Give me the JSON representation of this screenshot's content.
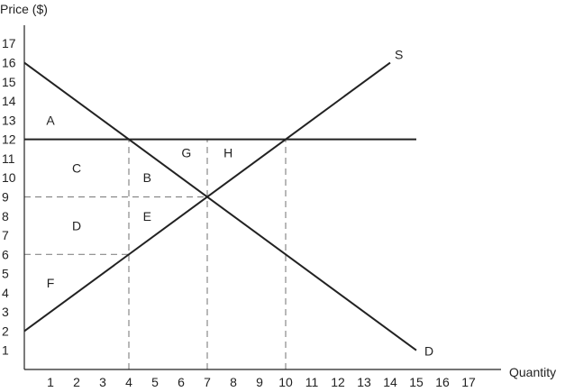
{
  "chart_data": {
    "type": "line",
    "title": "",
    "xlabel": "Quantity",
    "ylabel": "Price ($)",
    "xlim": [
      0,
      18
    ],
    "ylim": [
      0,
      18
    ],
    "x_ticks": [
      "1",
      "2",
      "3",
      "4",
      "5",
      "6",
      "7",
      "8",
      "9",
      "10",
      "11",
      "12",
      "13",
      "14",
      "15",
      "16",
      "17"
    ],
    "y_ticks": [
      "1",
      "2",
      "3",
      "4",
      "5",
      "6",
      "7",
      "8",
      "9",
      "10",
      "11",
      "12",
      "13",
      "14",
      "15",
      "16",
      "17"
    ],
    "grid": false,
    "series": [
      {
        "name": "S",
        "x": [
          0,
          14
        ],
        "y": [
          2,
          16
        ]
      },
      {
        "name": "D",
        "x": [
          0,
          15
        ],
        "y": [
          16,
          1
        ]
      }
    ],
    "price_line": {
      "y": 12,
      "x": [
        0,
        15
      ]
    },
    "guides": [
      {
        "x": [
          0,
          4
        ],
        "y": [
          6,
          6
        ]
      },
      {
        "x": [
          0,
          7
        ],
        "y": [
          9,
          9
        ]
      },
      {
        "x": [
          4,
          4
        ],
        "y": [
          0,
          12
        ]
      },
      {
        "x": [
          7,
          7
        ],
        "y": [
          0,
          12
        ]
      },
      {
        "x": [
          10,
          10
        ],
        "y": [
          0,
          12
        ]
      }
    ],
    "regions": [
      {
        "label": "A",
        "x": 1,
        "y": 13
      },
      {
        "label": "C",
        "x": 2,
        "y": 10.5
      },
      {
        "label": "B",
        "x": 4.7,
        "y": 10
      },
      {
        "label": "G",
        "x": 6.2,
        "y": 11.3
      },
      {
        "label": "H",
        "x": 7.8,
        "y": 11.3
      },
      {
        "label": "D",
        "x": 2,
        "y": 7.5
      },
      {
        "label": "E",
        "x": 4.7,
        "y": 8
      },
      {
        "label": "F",
        "x": 1,
        "y": 4.5
      }
    ]
  },
  "colors": {
    "line": "#222222",
    "guide": "#888888",
    "text": "#222222"
  }
}
